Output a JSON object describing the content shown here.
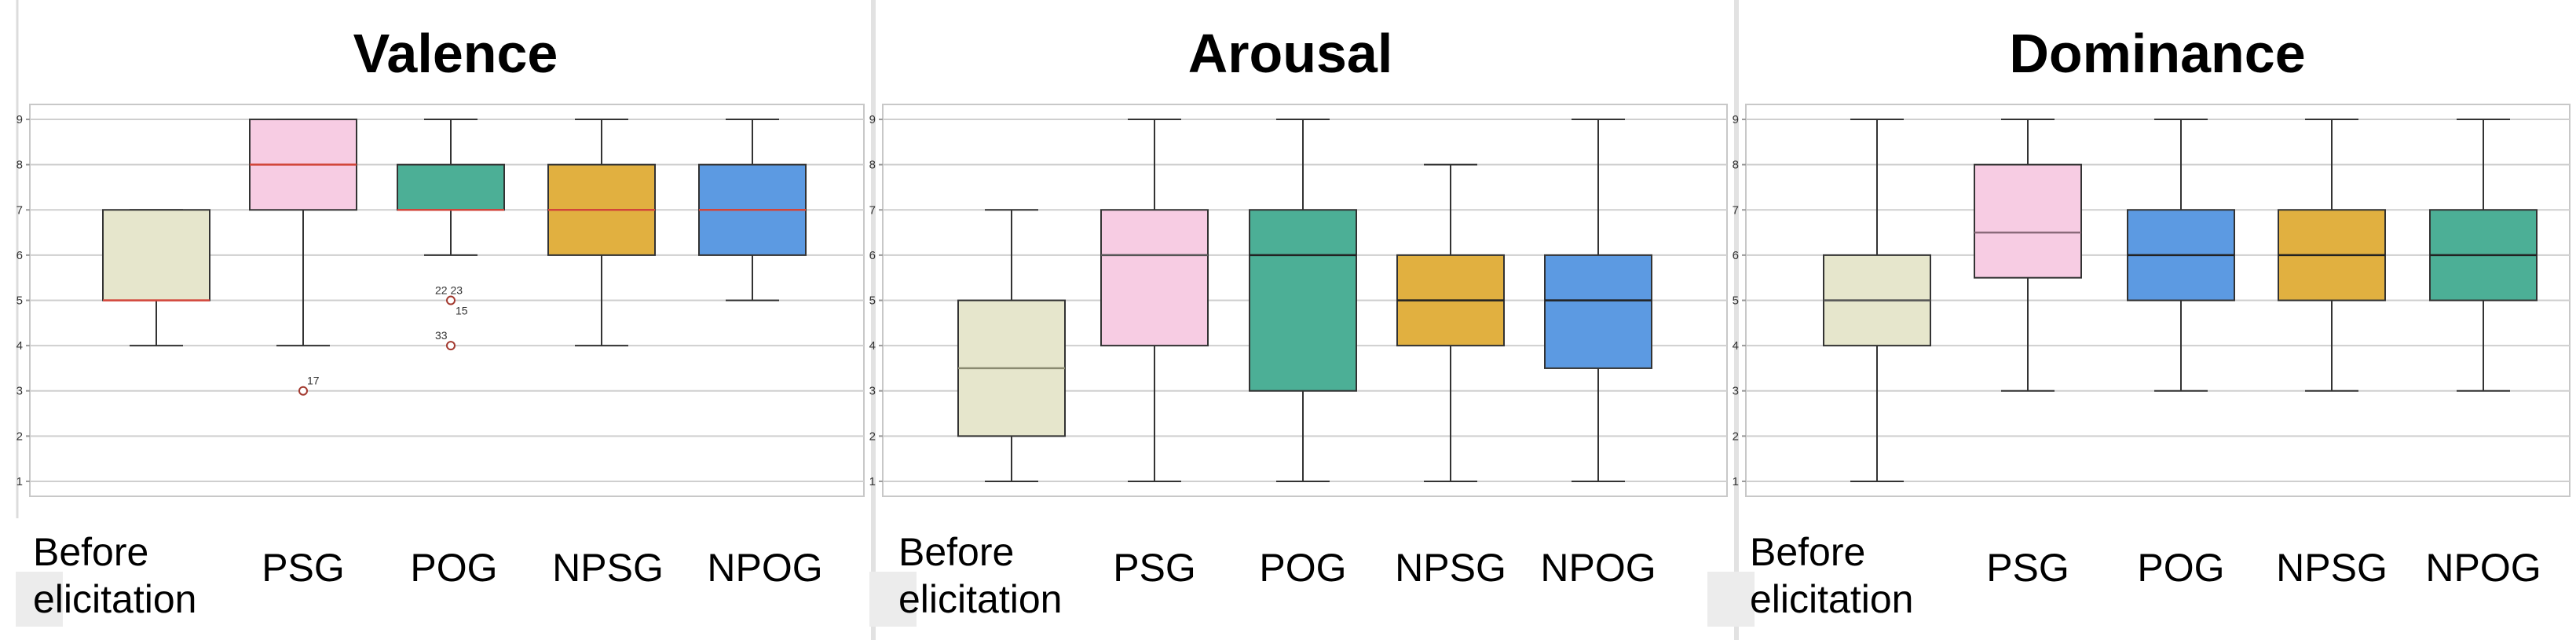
{
  "chart_data": [
    {
      "type": "box",
      "title": "Valence",
      "categories": [
        "Before elicitation",
        "PSG",
        "POG",
        "NPSG",
        "NPOG"
      ],
      "yticks": [
        1,
        2,
        3,
        4,
        5,
        6,
        7,
        8,
        9
      ],
      "ylim": [
        0.6,
        9.4
      ],
      "grid": true,
      "boxes": [
        {
          "category": "Before elicitation",
          "min": 4,
          "q1": 5,
          "median": 5,
          "q3": 7,
          "max": 7,
          "color": "#e6e6cc",
          "median_color": "#d2453a"
        },
        {
          "category": "PSG",
          "min": 4,
          "q1": 7,
          "median": 8,
          "q3": 9,
          "max": 9,
          "color": "#f7cce3",
          "median_color": "#d2453a",
          "outliers": [
            {
              "value": 3,
              "label": "17"
            }
          ]
        },
        {
          "category": "POG",
          "min": 6,
          "q1": 7,
          "median": 7,
          "q3": 8,
          "max": 9,
          "color": "#4caf96",
          "median_color": "#d2453a",
          "outliers": [
            {
              "value": 5,
              "label": "22  23",
              "label2": "15"
            },
            {
              "value": 4,
              "label": "33"
            }
          ]
        },
        {
          "category": "NPSG",
          "min": 4,
          "q1": 6,
          "median": 7,
          "q3": 8,
          "max": 9,
          "color": "#e1b040",
          "median_color": "#d2453a"
        },
        {
          "category": "NPOG",
          "min": 5,
          "q1": 6,
          "median": 7,
          "q3": 8,
          "max": 9,
          "color": "#5c9ae2",
          "median_color": "#d2453a"
        }
      ]
    },
    {
      "type": "box",
      "title": "Arousal",
      "categories": [
        "Before elicitation",
        "PSG",
        "POG",
        "NPSG",
        "NPOG"
      ],
      "yticks": [
        1,
        2,
        3,
        4,
        5,
        6,
        7,
        8,
        9
      ],
      "ylim": [
        0.6,
        9.4
      ],
      "grid": true,
      "boxes": [
        {
          "category": "Before elicitation",
          "min": 1,
          "q1": 2,
          "median": 3.5,
          "q3": 5,
          "max": 7,
          "color": "#e6e6cc",
          "median_color": "#8a8a70"
        },
        {
          "category": "PSG",
          "min": 1,
          "q1": 4,
          "median": 6,
          "q3": 7,
          "max": 9,
          "color": "#f7cce3",
          "median_color": "#555555"
        },
        {
          "category": "POG",
          "min": 1,
          "q1": 3,
          "median": 6,
          "q3": 7,
          "max": 9,
          "color": "#4caf96",
          "median_color": "#222222"
        },
        {
          "category": "NPSG",
          "min": 1,
          "q1": 4,
          "median": 5,
          "q3": 6,
          "max": 8,
          "color": "#e1b040",
          "median_color": "#222222"
        },
        {
          "category": "NPOG",
          "min": 1,
          "q1": 3.5,
          "median": 5,
          "q3": 6,
          "max": 9,
          "color": "#5c9ae2",
          "median_color": "#222222"
        }
      ]
    },
    {
      "type": "box",
      "title": "Dominance",
      "categories": [
        "Before elicitation",
        "PSG",
        "POG",
        "NPSG",
        "NPOG"
      ],
      "yticks": [
        1,
        2,
        3,
        4,
        5,
        6,
        7,
        8,
        9
      ],
      "ylim": [
        0.6,
        9.4
      ],
      "grid": true,
      "boxes": [
        {
          "category": "Before elicitation",
          "min": 1,
          "q1": 4,
          "median": 5,
          "q3": 6,
          "max": 9,
          "color": "#e6e6cc",
          "median_color": "#555555"
        },
        {
          "category": "PSG",
          "min": 3,
          "q1": 5.5,
          "median": 6.5,
          "q3": 8,
          "max": 9,
          "color": "#f7cce3",
          "median_color": "#8a6a7a"
        },
        {
          "category": "POG",
          "min": 3,
          "q1": 5,
          "median": 6,
          "q3": 7,
          "max": 9,
          "color": "#5c9ae2",
          "median_color": "#222222"
        },
        {
          "category": "NPSG",
          "min": 3,
          "q1": 5,
          "median": 6,
          "q3": 7,
          "max": 9,
          "color": "#e1b040",
          "median_color": "#222222"
        },
        {
          "category": "NPOG",
          "min": 3,
          "q1": 5,
          "median": 6,
          "q3": 7,
          "max": 9,
          "color": "#4caf96",
          "median_color": "#222222"
        }
      ]
    }
  ]
}
